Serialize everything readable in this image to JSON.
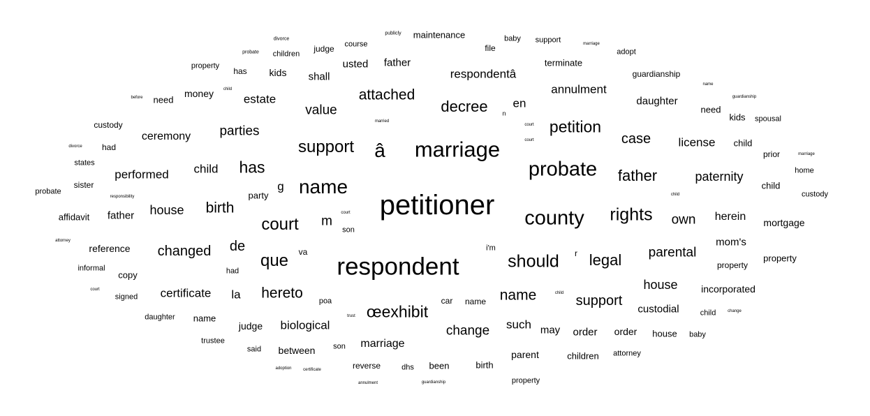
{
  "words": [
    {
      "text": "divorce"
    },
    {
      "text": "publicly"
    },
    {
      "text": "maintenance"
    },
    {
      "text": "baby"
    },
    {
      "text": "support"
    },
    {
      "text": "marriage"
    },
    {
      "text": "probate"
    },
    {
      "text": "children"
    },
    {
      "text": "judge"
    },
    {
      "text": "course"
    },
    {
      "text": "file"
    },
    {
      "text": "adopt"
    },
    {
      "text": "property"
    },
    {
      "text": "has"
    },
    {
      "text": "kids"
    },
    {
      "text": "usted"
    },
    {
      "text": "father"
    },
    {
      "text": "terminate"
    },
    {
      "text": "shall"
    },
    {
      "text": "respondentâ"
    },
    {
      "text": "guardianship"
    },
    {
      "text": "name"
    },
    {
      "text": "annulment"
    },
    {
      "text": "child"
    },
    {
      "text": "money"
    },
    {
      "text": "attached"
    },
    {
      "text": "guardianship"
    },
    {
      "text": "before"
    },
    {
      "text": "need"
    },
    {
      "text": "estate"
    },
    {
      "text": "daughter"
    },
    {
      "text": "en"
    },
    {
      "text": "decree"
    },
    {
      "text": "value"
    },
    {
      "text": "need"
    },
    {
      "text": "n"
    },
    {
      "text": "kids"
    },
    {
      "text": "spousal"
    },
    {
      "text": "married"
    },
    {
      "text": "court"
    },
    {
      "text": "custody"
    },
    {
      "text": "petition"
    },
    {
      "text": "parties"
    },
    {
      "text": "ceremony"
    },
    {
      "text": "court"
    },
    {
      "text": "case"
    },
    {
      "text": "divorce"
    },
    {
      "text": "had"
    },
    {
      "text": "support"
    },
    {
      "text": "license"
    },
    {
      "text": "child"
    },
    {
      "text": "marriage"
    },
    {
      "text": "â"
    },
    {
      "text": "prior"
    },
    {
      "text": "marriage"
    },
    {
      "text": "states"
    },
    {
      "text": "has"
    },
    {
      "text": "child"
    },
    {
      "text": "home"
    },
    {
      "text": "performed"
    },
    {
      "text": "probate"
    },
    {
      "text": "father"
    },
    {
      "text": "paternity"
    },
    {
      "text": "sister"
    },
    {
      "text": "name"
    },
    {
      "text": "g"
    },
    {
      "text": "child"
    },
    {
      "text": "probate"
    },
    {
      "text": "party"
    },
    {
      "text": "child"
    },
    {
      "text": "custody"
    },
    {
      "text": "responsibility"
    },
    {
      "text": "petitioner"
    },
    {
      "text": "birth"
    },
    {
      "text": "house"
    },
    {
      "text": "rights"
    },
    {
      "text": "affidavit"
    },
    {
      "text": "father"
    },
    {
      "text": "county"
    },
    {
      "text": "court"
    },
    {
      "text": "herein"
    },
    {
      "text": "own"
    },
    {
      "text": "m"
    },
    {
      "text": "mortgage"
    },
    {
      "text": "court"
    },
    {
      "text": "son"
    },
    {
      "text": "attorney"
    },
    {
      "text": "mom's"
    },
    {
      "text": "de"
    },
    {
      "text": "reference"
    },
    {
      "text": "changed"
    },
    {
      "text": "i'm"
    },
    {
      "text": "va"
    },
    {
      "text": "r"
    },
    {
      "text": "parental"
    },
    {
      "text": "respondent"
    },
    {
      "text": "should"
    },
    {
      "text": "que"
    },
    {
      "text": "legal"
    },
    {
      "text": "informal"
    },
    {
      "text": "had"
    },
    {
      "text": "property"
    },
    {
      "text": "property"
    },
    {
      "text": "copy"
    },
    {
      "text": "house"
    },
    {
      "text": "court"
    },
    {
      "text": "certificate"
    },
    {
      "text": "incorporated"
    },
    {
      "text": "hereto"
    },
    {
      "text": "la"
    },
    {
      "text": "signed"
    },
    {
      "text": "name"
    },
    {
      "text": "child"
    },
    {
      "text": "support"
    },
    {
      "text": "poa"
    },
    {
      "text": "car"
    },
    {
      "text": "name"
    },
    {
      "text": "daughter"
    },
    {
      "text": "custodial"
    },
    {
      "text": "œexhibit"
    },
    {
      "text": "trust"
    },
    {
      "text": "child"
    },
    {
      "text": "change"
    },
    {
      "text": "name"
    },
    {
      "text": "judge"
    },
    {
      "text": "biological"
    },
    {
      "text": "such"
    },
    {
      "text": "change"
    },
    {
      "text": "may"
    },
    {
      "text": "order"
    },
    {
      "text": "order"
    },
    {
      "text": "house"
    },
    {
      "text": "baby"
    },
    {
      "text": "trustee"
    },
    {
      "text": "marriage"
    },
    {
      "text": "son"
    },
    {
      "text": "said"
    },
    {
      "text": "between"
    },
    {
      "text": "attorney"
    },
    {
      "text": "parent"
    },
    {
      "text": "children"
    },
    {
      "text": "reverse"
    },
    {
      "text": "been"
    },
    {
      "text": "birth"
    },
    {
      "text": "dhs"
    },
    {
      "text": "adoption"
    },
    {
      "text": "certificate"
    },
    {
      "text": "annulment"
    },
    {
      "text": "guardianship"
    },
    {
      "text": "property"
    }
  ]
}
